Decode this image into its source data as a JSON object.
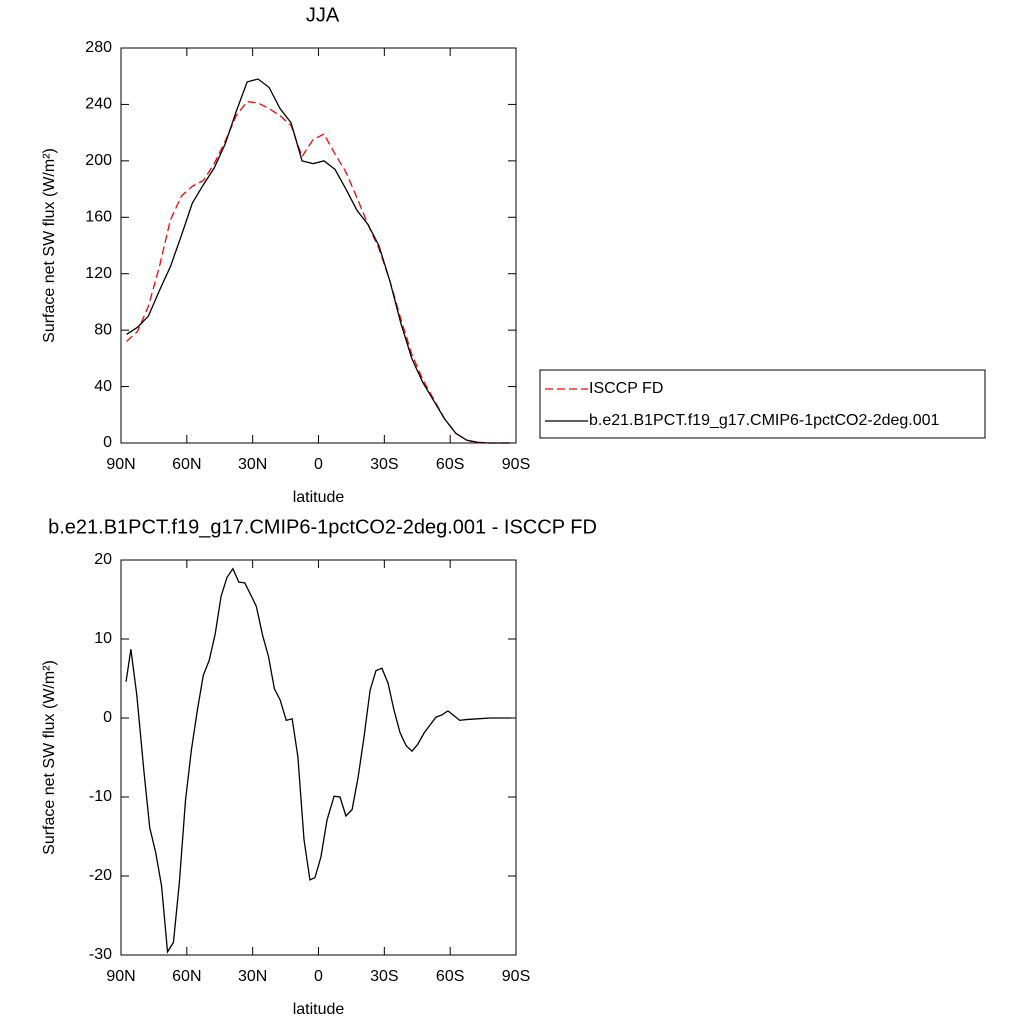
{
  "chart_data": [
    {
      "type": "line",
      "title": "JJA",
      "x_label": "latitude",
      "y_label": "Surface net SW flux (W/m²)",
      "x": [
        87.5,
        82.5,
        77.5,
        72.5,
        67.5,
        62.5,
        57.5,
        52.5,
        47.5,
        42.5,
        37.5,
        32.5,
        27.5,
        22.5,
        17.5,
        12.5,
        7.5,
        2.5,
        -2.5,
        -7.5,
        -12.5,
        -17.5,
        -22.5,
        -27.5,
        -32.5,
        -37.5,
        -42.5,
        -47.5,
        -52.5,
        -57.5,
        -62.5,
        -67.5,
        -72.5,
        -77.5,
        -82.5,
        -87.5
      ],
      "series": [
        {
          "name": "ISCCP FD",
          "color": "#ff0000",
          "line_style": "dashed",
          "values": [
            72,
            79,
            97,
            125,
            158,
            175,
            182,
            186,
            198,
            214,
            232,
            242,
            241,
            237,
            232,
            225,
            203,
            215,
            219,
            205,
            192,
            174,
            155,
            138,
            115,
            88,
            63,
            45,
            31,
            17,
            7,
            2,
            0,
            0,
            0,
            0
          ]
        },
        {
          "name": "b.e21.B1PCT.f19_g17.CMIP6-1pctCO2-2deg.001",
          "color": "#000000",
          "line_style": "solid",
          "values": [
            77,
            82,
            90,
            108,
            125,
            147,
            170,
            183,
            195,
            212,
            235,
            256,
            258,
            252,
            237,
            227,
            200,
            198,
            200,
            194,
            180,
            165,
            155,
            140,
            115,
            85,
            60,
            43,
            30,
            17,
            7,
            2,
            0.5,
            0,
            0,
            0
          ]
        }
      ],
      "xlim": [
        90,
        -90
      ],
      "xticks": [
        {
          "value": 90,
          "label": "90N"
        },
        {
          "value": 60,
          "label": "60N"
        },
        {
          "value": 30,
          "label": "30N"
        },
        0,
        {
          "value": -30,
          "label": "30S"
        },
        {
          "value": -60,
          "label": "60S"
        },
        {
          "value": -90,
          "label": "90S"
        }
      ],
      "ylim": [
        0,
        280
      ],
      "yticks": [
        0,
        40,
        80,
        120,
        160,
        200,
        240,
        280
      ],
      "legend": "right"
    },
    {
      "type": "line",
      "title": "b.e21.B1PCT.f19_g17.CMIP6-1pctCO2-2deg.001 - ISCCP FD",
      "x_label": "latitude",
      "y_label": "Surface net SW flux (W/m²)",
      "x": [
        87.7,
        85.5,
        82.8,
        79.6,
        76.9,
        74.2,
        71.5,
        68.8,
        66.1,
        63.4,
        60.6,
        57.9,
        55.2,
        52.5,
        49.8,
        47.1,
        44.4,
        41.7,
        39,
        36.3,
        33.6,
        30.9,
        28.3,
        25.5,
        22.8,
        20.1,
        17.5,
        14.7,
        12,
        9.4,
        6.6,
        3.9,
        1.6,
        -1.1,
        -3.9,
        -7.1,
        -9.8,
        -12.5,
        -15.3,
        -18,
        -20.7,
        -23.5,
        -26.2,
        -28.9,
        -31.7,
        -34.4,
        -37.1,
        -39.9,
        -42.6,
        -45.3,
        -48.1,
        -50.8,
        -53.5,
        -56.3,
        -59,
        -61.7,
        -64.4,
        -67.2,
        -72.6,
        -78.1,
        -87.7
      ],
      "series": [
        {
          "name": "difference",
          "color": "#000000",
          "values": [
            4.6,
            8.7,
            2.9,
            -6.6,
            -13.9,
            -17,
            -21.3,
            -29.6,
            -28.4,
            -20.8,
            -10.4,
            -4,
            1,
            5.4,
            7.3,
            10.6,
            15.4,
            17.8,
            18.9,
            17.2,
            17.1,
            15.6,
            14.1,
            10.5,
            7.8,
            3.7,
            2.3,
            -0.3,
            -0.1,
            -4.9,
            -15.4,
            -20.5,
            -20.2,
            -17.6,
            -12.9,
            -9.9,
            -10,
            -12.4,
            -11.6,
            -7.6,
            -2.5,
            3.5,
            6,
            6.3,
            4.4,
            1,
            -1.8,
            -3.5,
            -4.2,
            -3.3,
            -1.9,
            -0.9,
            0.1,
            0.4,
            0.9,
            0.3,
            -0.3,
            -0.2,
            -0.1,
            0,
            0
          ]
        }
      ],
      "xlim": [
        90,
        -90
      ],
      "xticks": [
        {
          "value": 90,
          "label": "90N"
        },
        {
          "value": 60,
          "label": "60N"
        },
        {
          "value": 30,
          "label": "30N"
        },
        0,
        {
          "value": -30,
          "label": "30S"
        },
        {
          "value": -60,
          "label": "60S"
        },
        {
          "value": -90,
          "label": "90S"
        }
      ],
      "ylim": [
        -30,
        20
      ],
      "yticks": [
        -30,
        -20,
        -10,
        0,
        10,
        20
      ]
    }
  ]
}
